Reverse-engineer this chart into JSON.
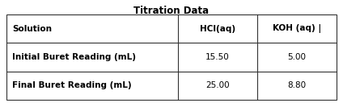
{
  "title": "Titration Data",
  "col_headers": [
    "Solution",
    "HCl(aq)",
    "KOH (aq) |"
  ],
  "rows": [
    [
      "Initial Buret Reading (mL)",
      "15.50",
      "5.00"
    ],
    [
      "Final Buret Reading (mL)",
      "25.00",
      "8.80"
    ]
  ],
  "bg_color": "#ffffff",
  "border_color": "#333333",
  "title_fontsize": 8.5,
  "cell_fontsize": 7.5,
  "fig_width": 4.24,
  "fig_height": 1.28
}
